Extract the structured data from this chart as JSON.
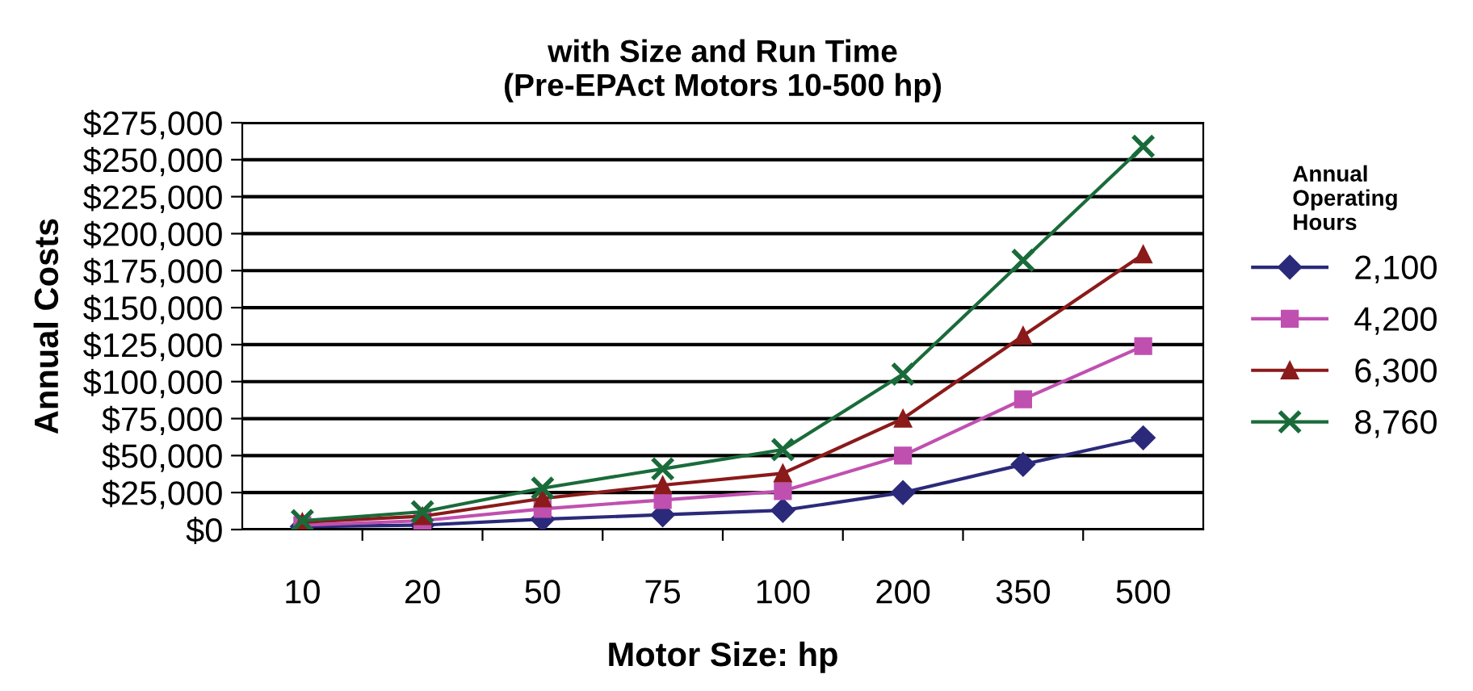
{
  "chart_data": {
    "type": "line",
    "title": "with Size and Run Time\n(Pre-EPAct Motors 10-500 hp)",
    "xlabel": "Motor Size: hp",
    "ylabel": "Annual Costs",
    "legend_title": "Annual\nOperating\nHours",
    "categories": [
      "10",
      "20",
      "50",
      "75",
      "100",
      "200",
      "350",
      "500"
    ],
    "series": [
      {
        "name": "2,100",
        "color": "#2b2a7a",
        "marker": "diamond",
        "values": [
          2000,
          3000,
          7000,
          10000,
          13000,
          25000,
          44000,
          62000
        ]
      },
      {
        "name": "4,200",
        "color": "#c050b0",
        "marker": "square",
        "values": [
          3000,
          6000,
          14000,
          20000,
          26000,
          50000,
          88000,
          124000
        ]
      },
      {
        "name": "6,300",
        "color": "#8b1a1a",
        "marker": "triangle",
        "values": [
          5000,
          9000,
          21000,
          30000,
          38000,
          75000,
          131000,
          186000
        ]
      },
      {
        "name": "8,760",
        "color": "#1a6b3a",
        "marker": "cross",
        "values": [
          6000,
          12000,
          28000,
          41000,
          54000,
          105000,
          182000,
          259000
        ]
      }
    ],
    "ylim": [
      0,
      275000
    ],
    "yticks": [
      {
        "value": 0,
        "label": "$0"
      },
      {
        "value": 25000,
        "label": "$25,000"
      },
      {
        "value": 50000,
        "label": "$50,000"
      },
      {
        "value": 75000,
        "label": "$75,000"
      },
      {
        "value": 100000,
        "label": "$100,000"
      },
      {
        "value": 125000,
        "label": "$125,000"
      },
      {
        "value": 150000,
        "label": "$150,000"
      },
      {
        "value": 175000,
        "label": "$175,000"
      },
      {
        "value": 200000,
        "label": "$200,000"
      },
      {
        "value": 225000,
        "label": "$225,000"
      },
      {
        "value": 250000,
        "label": "$250,000"
      },
      {
        "value": 275000,
        "label": "$275,000"
      }
    ],
    "grid": "y",
    "legend": "right"
  }
}
